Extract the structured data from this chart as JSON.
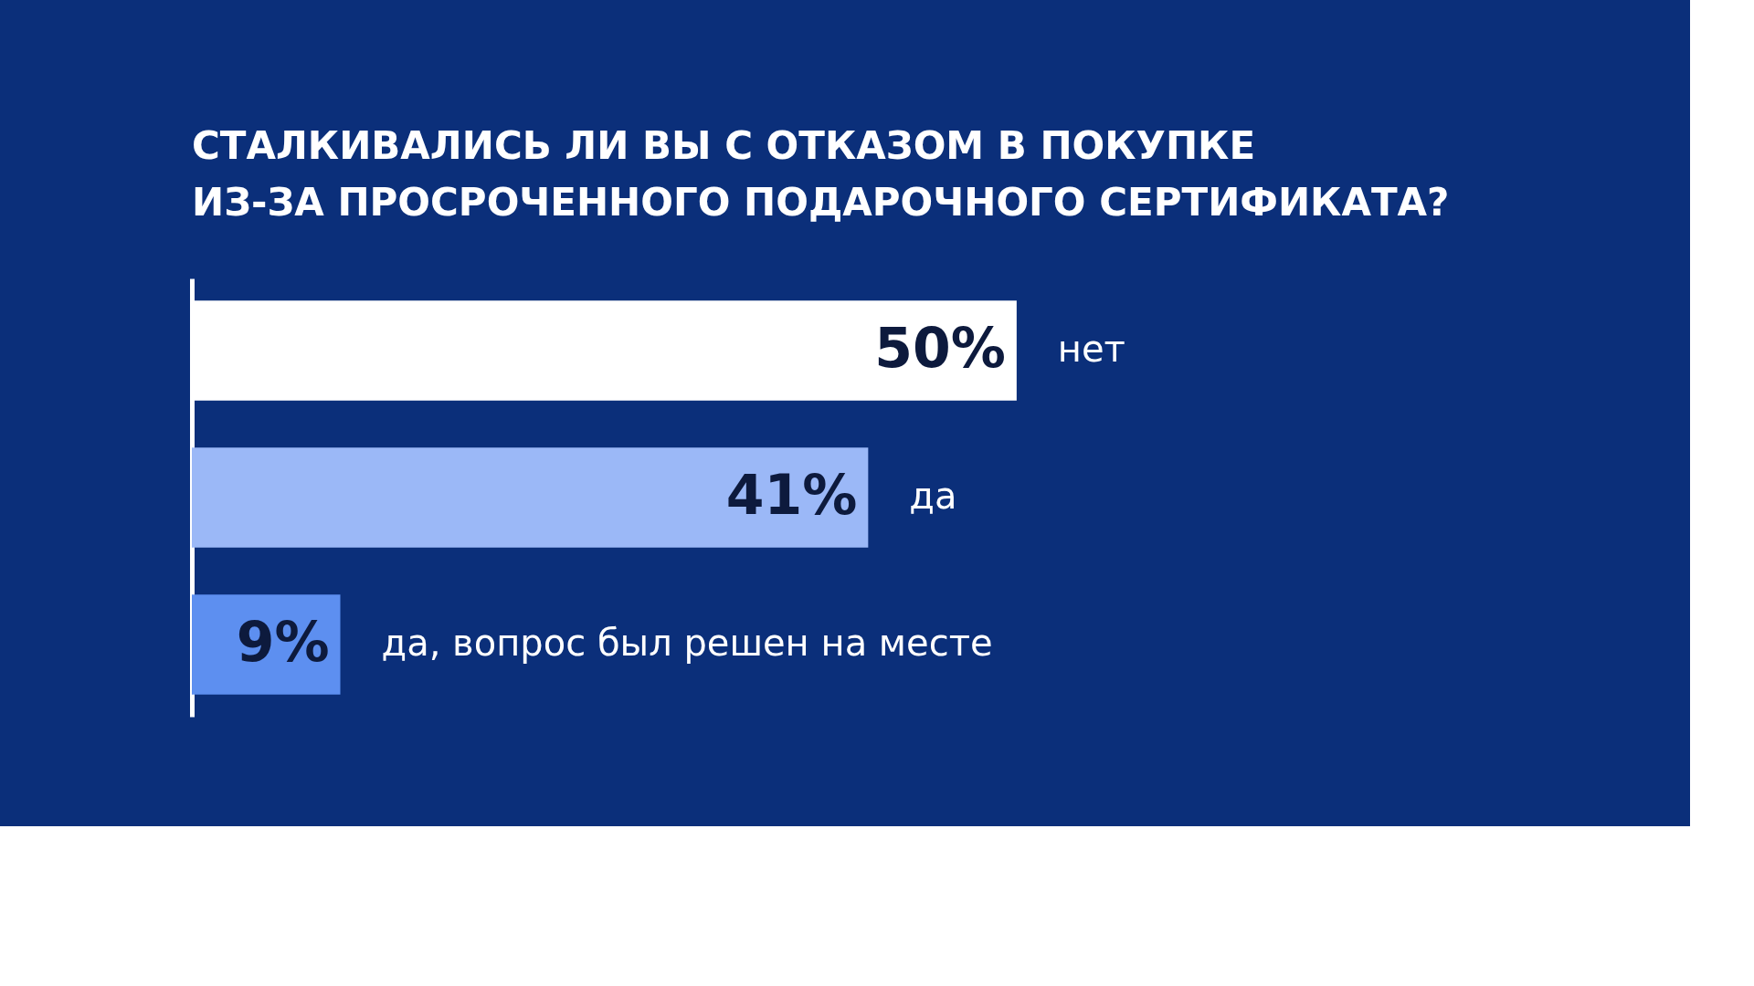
{
  "chart_data": {
    "type": "bar",
    "orientation": "horizontal",
    "title": [
      "СТАЛКИВАЛИСЬ ЛИ ВЫ С ОТКАЗОМ В ПОКУПКЕ",
      "ИЗ-ЗА ПРОСРОЧЕННОГО ПОДАРОЧНОГО СЕРТИФИКАТА?"
    ],
    "categories": [
      "нет",
      "да",
      "да, вопрос был решен на месте"
    ],
    "values": [
      50,
      41,
      9
    ],
    "value_labels": [
      "50%",
      "41%",
      "9%"
    ],
    "colors": [
      "#ffffff",
      "#9bb8f7",
      "#5d8ff0"
    ],
    "legend": false,
    "grid": false
  }
}
